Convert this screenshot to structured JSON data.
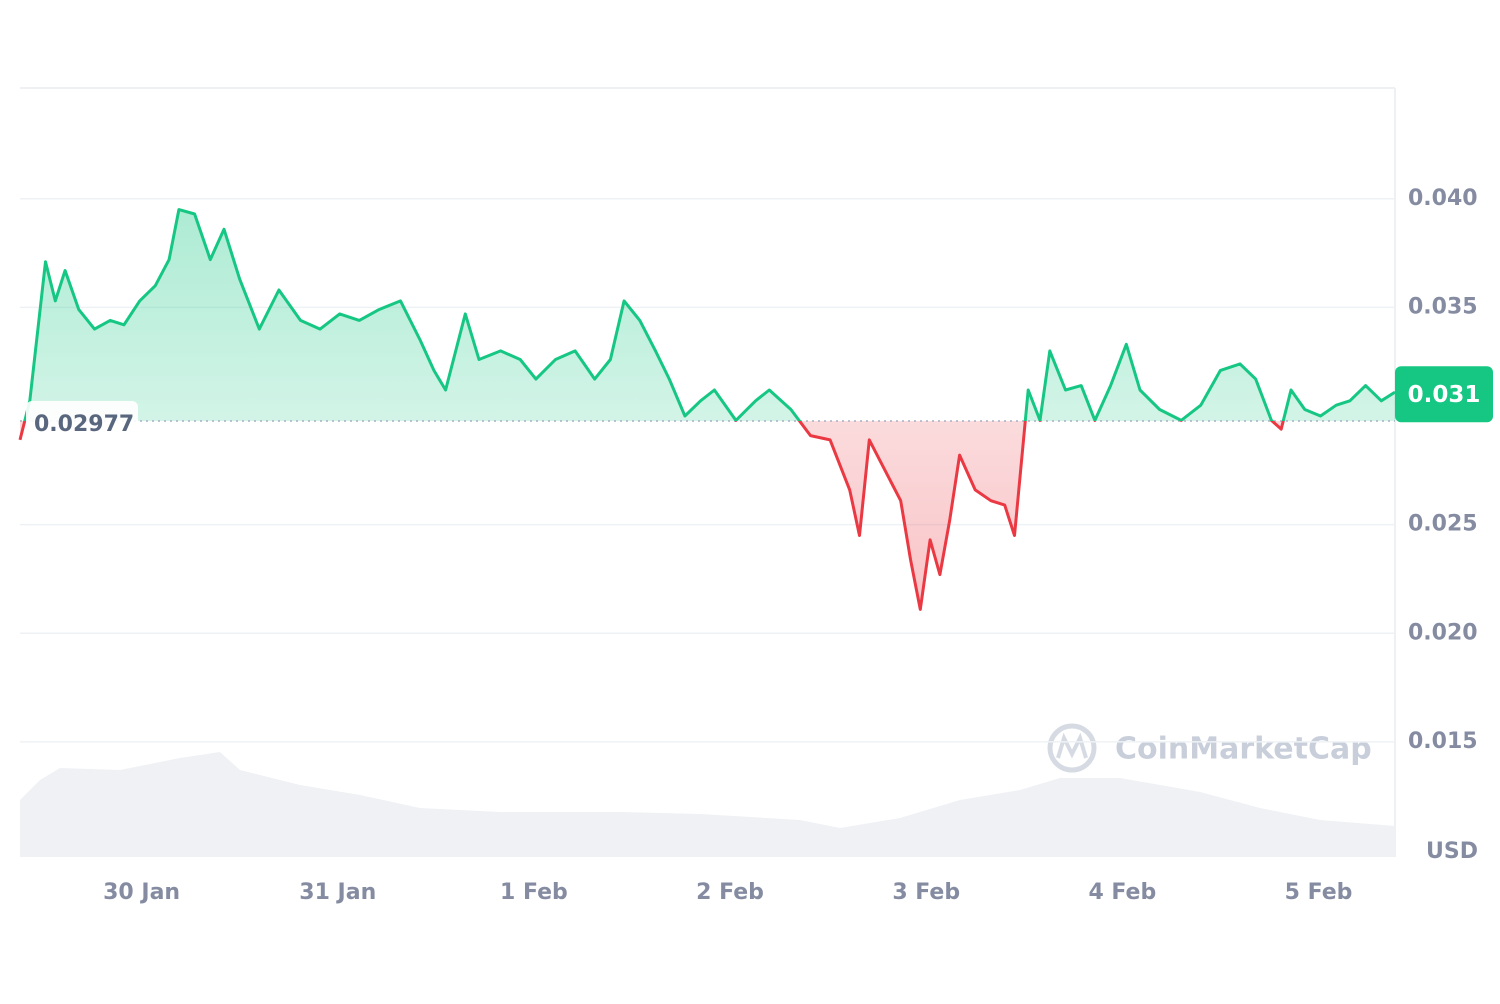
{
  "chart_data": {
    "type": "line",
    "x": [
      -0.62,
      -0.57,
      -0.49,
      -0.44,
      -0.39,
      -0.32,
      -0.24,
      -0.16,
      -0.09,
      -0.01,
      0.07,
      0.14,
      0.19,
      0.27,
      0.35,
      0.42,
      0.5,
      0.6,
      0.7,
      0.81,
      0.91,
      1.01,
      1.11,
      1.21,
      1.32,
      1.42,
      1.49,
      1.55,
      1.65,
      1.72,
      1.83,
      1.93,
      2.01,
      2.11,
      2.21,
      2.31,
      2.39,
      2.46,
      2.54,
      2.62,
      2.69,
      2.77,
      2.85,
      2.92,
      3.03,
      3.13,
      3.2,
      3.31,
      3.41,
      3.51,
      3.61,
      3.66,
      3.71,
      3.79,
      3.87,
      3.92,
      3.97,
      4.02,
      4.07,
      4.12,
      4.17,
      4.25,
      4.33,
      4.4,
      4.45,
      4.52,
      4.58,
      4.63,
      4.71,
      4.79,
      4.86,
      4.94,
      5.02,
      5.09,
      5.19,
      5.3,
      5.4,
      5.5,
      5.6,
      5.68,
      5.76,
      5.81,
      5.86,
      5.93,
      6.01,
      6.09,
      6.16,
      6.24,
      6.32,
      6.39
    ],
    "series": [
      {
        "color": "#16c784",
        "below_color": "#ea3943",
        "values": [
          0.0289,
          0.0307,
          0.0371,
          0.0353,
          0.0367,
          0.0349,
          0.034,
          0.0344,
          0.0342,
          0.0353,
          0.036,
          0.0372,
          0.0395,
          0.0393,
          0.0372,
          0.0386,
          0.0363,
          0.034,
          0.0358,
          0.0344,
          0.034,
          0.0347,
          0.0344,
          0.0349,
          0.0353,
          0.0335,
          0.0321,
          0.0312,
          0.0347,
          0.0326,
          0.033,
          0.0326,
          0.0317,
          0.0326,
          0.033,
          0.0317,
          0.0326,
          0.0353,
          0.0344,
          0.033,
          0.0317,
          0.03,
          0.0307,
          0.0312,
          0.0298,
          0.0307,
          0.0312,
          0.0303,
          0.0291,
          0.0289,
          0.0266,
          0.0245,
          0.0289,
          0.0275,
          0.0261,
          0.0234,
          0.0211,
          0.0243,
          0.0227,
          0.0252,
          0.0282,
          0.0266,
          0.0261,
          0.0259,
          0.0245,
          0.0312,
          0.0298,
          0.033,
          0.0312,
          0.0314,
          0.0298,
          0.0314,
          0.0333,
          0.0312,
          0.0303,
          0.0298,
          0.0305,
          0.0321,
          0.0324,
          0.0317,
          0.0298,
          0.0294,
          0.0312,
          0.0303,
          0.03,
          0.0305,
          0.0307,
          0.0314,
          0.0307,
          0.0311
        ]
      }
    ],
    "baseline": 0.02977,
    "current_price": 0.031,
    "unit": "USD",
    "watermark": "CoinMarketCap",
    "xlim": [
      -0.62,
      6.39
    ],
    "xticks": [
      {
        "value": 0,
        "label": "30 Jan"
      },
      {
        "value": 1,
        "label": "31 Jan"
      },
      {
        "value": 2,
        "label": "1 Feb"
      },
      {
        "value": 3,
        "label": "2 Feb"
      },
      {
        "value": 4,
        "label": "3 Feb"
      },
      {
        "value": 5,
        "label": "4 Feb"
      },
      {
        "value": 6,
        "label": "5 Feb"
      }
    ],
    "ylim": [
      0.0097,
      0.0451
    ],
    "yticks": [
      {
        "value": 0.015,
        "label": "0.015"
      },
      {
        "value": 0.02,
        "label": "0.020"
      },
      {
        "value": 0.025,
        "label": "0.025"
      },
      {
        "value": 0.035,
        "label": "0.035"
      },
      {
        "value": 0.04,
        "label": "0.040"
      }
    ],
    "grid": true
  }
}
